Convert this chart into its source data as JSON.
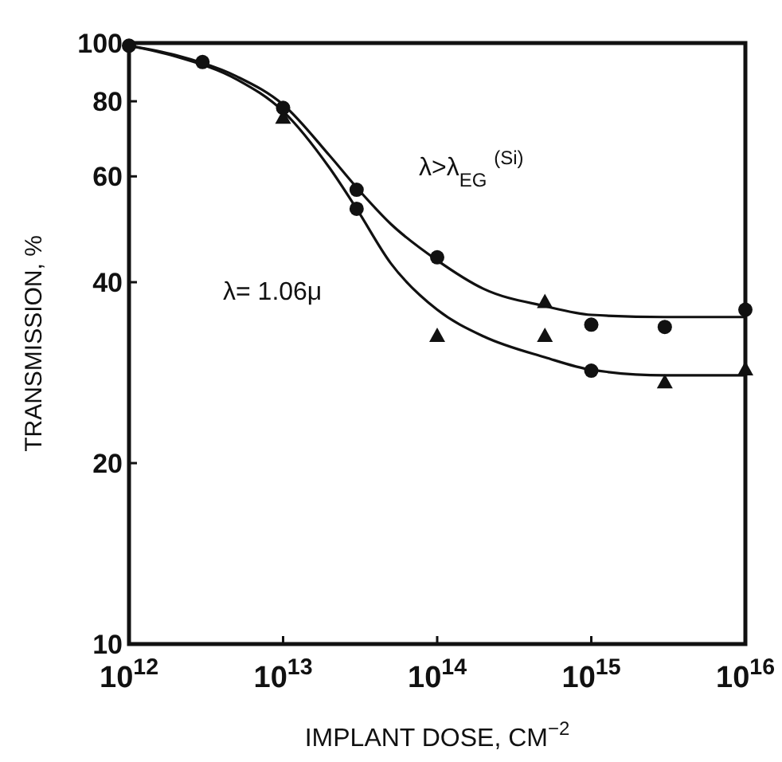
{
  "chart_data": {
    "type": "scatter",
    "xlabel": "IMPLANT DOSE, CM$^{−2}$",
    "ylabel": "TRANSMISSION, %",
    "log": "xy",
    "grid": false,
    "xlim": [
      1000000000000.0,
      1e+16
    ],
    "ylim": [
      10,
      100
    ],
    "xticks": [
      {
        "value": 1000000000000.0,
        "label": "10$^{12}$"
      },
      {
        "value": 10000000000000.0,
        "label": "10$^{13}$"
      },
      {
        "value": 100000000000000.0,
        "label": "10$^{14}$"
      },
      {
        "value": 1000000000000000.0,
        "label": "10$^{15}$"
      },
      {
        "value": 1e+16,
        "label": "10$^{16}$"
      }
    ],
    "yticks": [
      10,
      20,
      40,
      60,
      80,
      100
    ],
    "series": [
      {
        "type": "line",
        "marker": "none",
        "color": "#111111",
        "x": [
          1000000000000.0,
          2000000000000.0,
          5000000000000.0,
          10000000000000.0,
          20000000000000.0,
          30000000000000.0,
          50000000000000.0,
          100000000000000.0,
          200000000000000.0,
          500000000000000.0,
          1000000000000000.0,
          3000000000000000.0,
          1e+16
        ],
        "values": [
          99,
          95.5,
          88,
          79,
          65,
          57.5,
          50,
          43.5,
          39,
          36.5,
          35.3,
          35,
          35
        ]
      },
      {
        "type": "line",
        "marker": "none",
        "color": "#111111",
        "x": [
          1000000000000.0,
          2000000000000.0,
          5000000000000.0,
          10000000000000.0,
          20000000000000.0,
          30000000000000.0,
          50000000000000.0,
          100000000000000.0,
          200000000000000.0,
          500000000000000.0,
          1000000000000000.0,
          3000000000000000.0,
          1e+16
        ],
        "values": [
          99,
          95,
          87,
          77,
          62,
          53,
          43,
          36,
          32.5,
          30,
          28.6,
          28,
          28
        ]
      },
      {
        "marker": "circle",
        "color": "#111111",
        "x": [
          1000000000000.0,
          3000000000000.0,
          10000000000000.0,
          30000000000000.0,
          30000000000000.0,
          100000000000000.0,
          1000000000000000.0,
          1000000000000000.0,
          3000000000000000.0,
          1e+16
        ],
        "values": [
          99,
          93,
          78,
          57,
          53,
          44,
          34,
          28.5,
          33.7,
          36
        ]
      },
      {
        "marker": "triangle",
        "color": "#111111",
        "x": [
          10000000000000.0,
          100000000000000.0,
          500000000000000.0,
          500000000000000.0,
          3000000000000000.0,
          1e+16
        ],
        "values": [
          75,
          32.5,
          37,
          32.5,
          27.2,
          28.6
        ]
      }
    ],
    "annotations": [
      "λ>λ$_{EG}$ $^{(Si)}$",
      "λ= 1.06μ"
    ]
  }
}
